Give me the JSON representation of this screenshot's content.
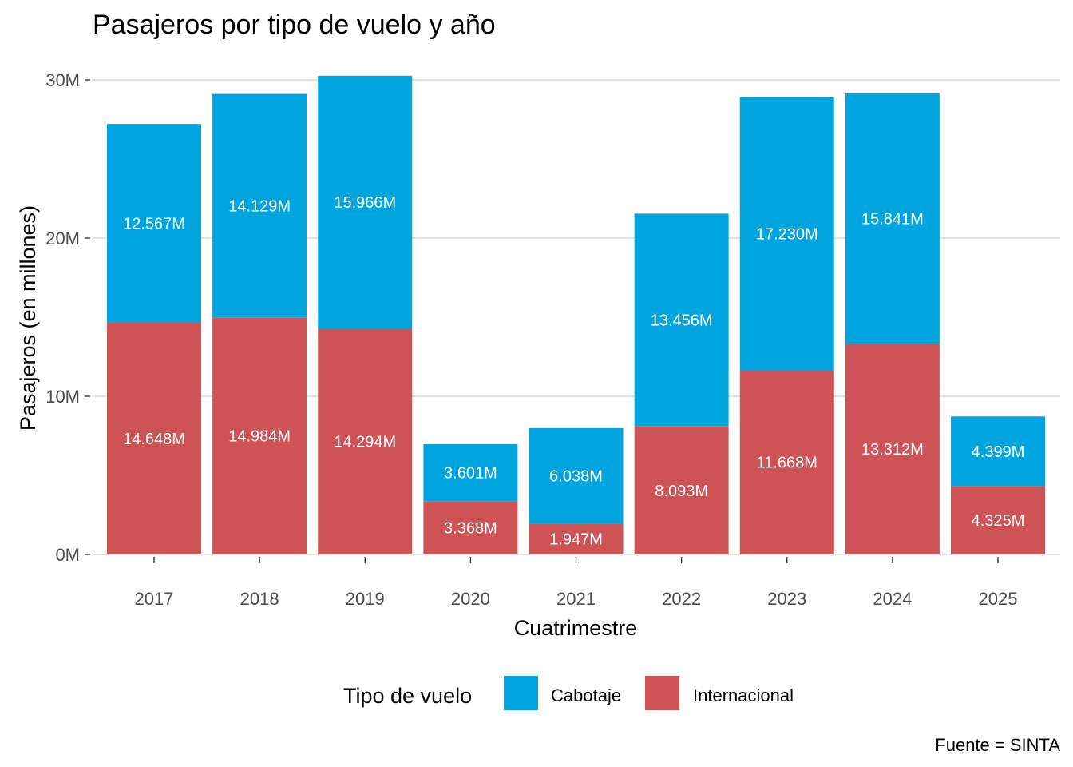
{
  "chart_data": {
    "type": "bar",
    "stacked": true,
    "title": "Pasajeros por tipo de vuelo y año",
    "xlabel": "Cuatrimestre",
    "ylabel": "Pasajeros (en millones)",
    "caption": "Fuente = SINTA",
    "categories": [
      "2017",
      "2018",
      "2019",
      "2020",
      "2021",
      "2022",
      "2023",
      "2024",
      "2025"
    ],
    "ylim": [
      0,
      30
    ],
    "yticks": [
      0,
      10,
      20,
      30
    ],
    "ytick_labels": [
      "0M",
      "10M",
      "20M",
      "30M"
    ],
    "grid": true,
    "legend": {
      "title": "Tipo de vuelo",
      "position": "bottom"
    },
    "series": [
      {
        "name": "Internacional",
        "color": "#CD5355",
        "values": [
          14.648,
          14.984,
          14.294,
          3.368,
          1.947,
          8.093,
          11.668,
          13.312,
          4.325
        ],
        "labels": [
          "14.648M",
          "14.984M",
          "14.294M",
          "3.368M",
          "1.947M",
          "8.093M",
          "11.668M",
          "13.312M",
          "4.325M"
        ]
      },
      {
        "name": "Cabotaje",
        "color": "#00A5DF",
        "values": [
          12.567,
          14.129,
          15.966,
          3.601,
          6.038,
          13.456,
          17.23,
          15.841,
          4.399
        ],
        "labels": [
          "12.567M",
          "14.129M",
          "15.966M",
          "3.601M",
          "6.038M",
          "13.456M",
          "17.230M",
          "15.841M",
          "4.399M"
        ]
      }
    ],
    "legend_order": [
      "Cabotaje",
      "Internacional"
    ]
  }
}
